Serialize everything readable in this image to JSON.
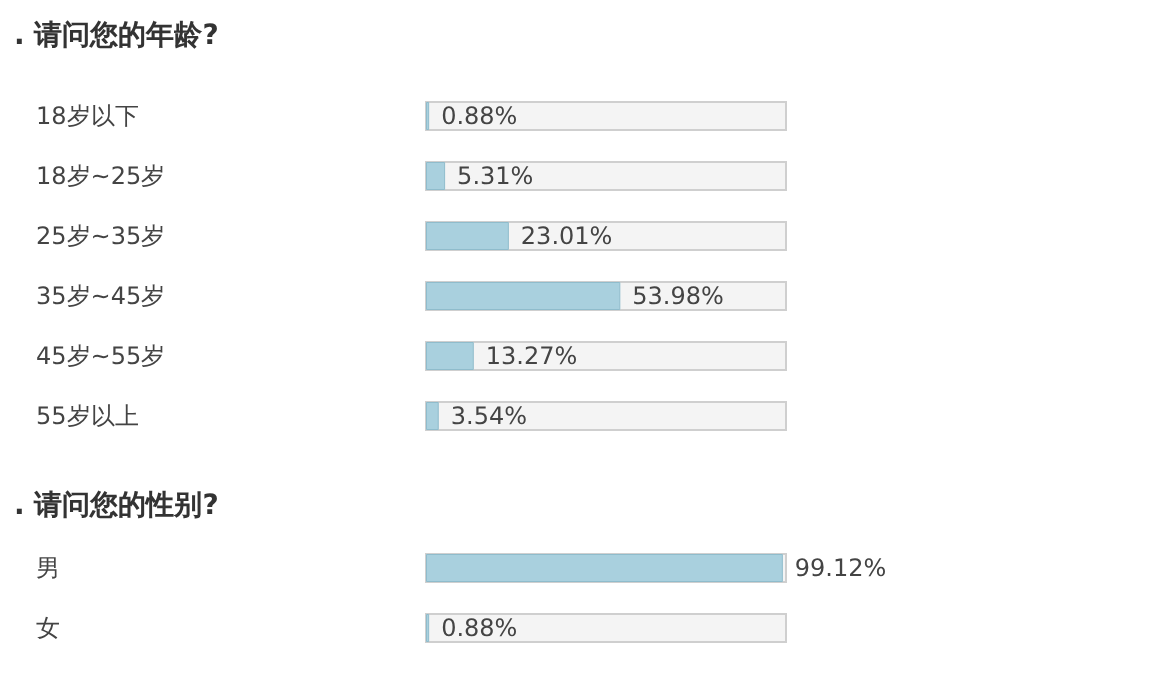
{
  "chart_data": [
    {
      "type": "bar",
      "orientation": "horizontal",
      "title": ". 请问您的年龄?",
      "categories": [
        "18岁以下",
        "18岁~25岁",
        "25岁~35岁",
        "35岁~45岁",
        "45岁~55岁",
        "55岁以上"
      ],
      "values": [
        0.88,
        5.31,
        23.01,
        53.98,
        13.27,
        3.54
      ],
      "value_labels": [
        "0.88%",
        "5.31%",
        "23.01%",
        "53.98%",
        "13.27%",
        "3.54%"
      ],
      "color": "#a9d0de",
      "xlim": [
        0,
        100
      ],
      "tick_labels": "y"
    },
    {
      "type": "bar",
      "orientation": "horizontal",
      "title": ". 请问您的性别?",
      "categories": [
        "男",
        "女"
      ],
      "values": [
        99.12,
        0.88
      ],
      "value_labels": [
        "99.12%",
        "0.88%"
      ],
      "color": "#a9d0de",
      "xlim": [
        0,
        100
      ],
      "tick_labels": "y"
    }
  ]
}
